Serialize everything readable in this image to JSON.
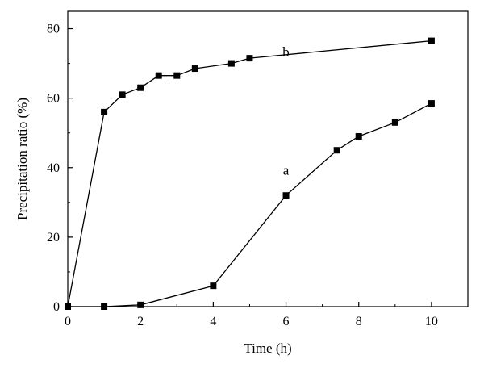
{
  "chart_data": {
    "type": "line",
    "title": "",
    "xlabel": "Time (h)",
    "ylabel": "Precipitation ratio (%)",
    "xlim": [
      0,
      11
    ],
    "ylim": [
      0,
      85
    ],
    "xticks": [
      0,
      2,
      4,
      6,
      8,
      10
    ],
    "yticks": [
      0,
      20,
      40,
      60,
      80
    ],
    "grid": false,
    "marker": "square",
    "color": "#000000",
    "series": [
      {
        "name": "a",
        "x": [
          0,
          1,
          2,
          4,
          6,
          7.4,
          8,
          9,
          10
        ],
        "y": [
          0,
          0,
          0.5,
          6,
          32,
          45,
          49,
          53,
          58.5
        ]
      },
      {
        "name": "b",
        "x": [
          0,
          1,
          1.5,
          2,
          2.5,
          3,
          3.5,
          4.5,
          5,
          10
        ],
        "y": [
          0,
          56,
          61,
          63,
          66.5,
          66.5,
          68.5,
          70,
          71.5,
          76.5
        ]
      }
    ]
  }
}
